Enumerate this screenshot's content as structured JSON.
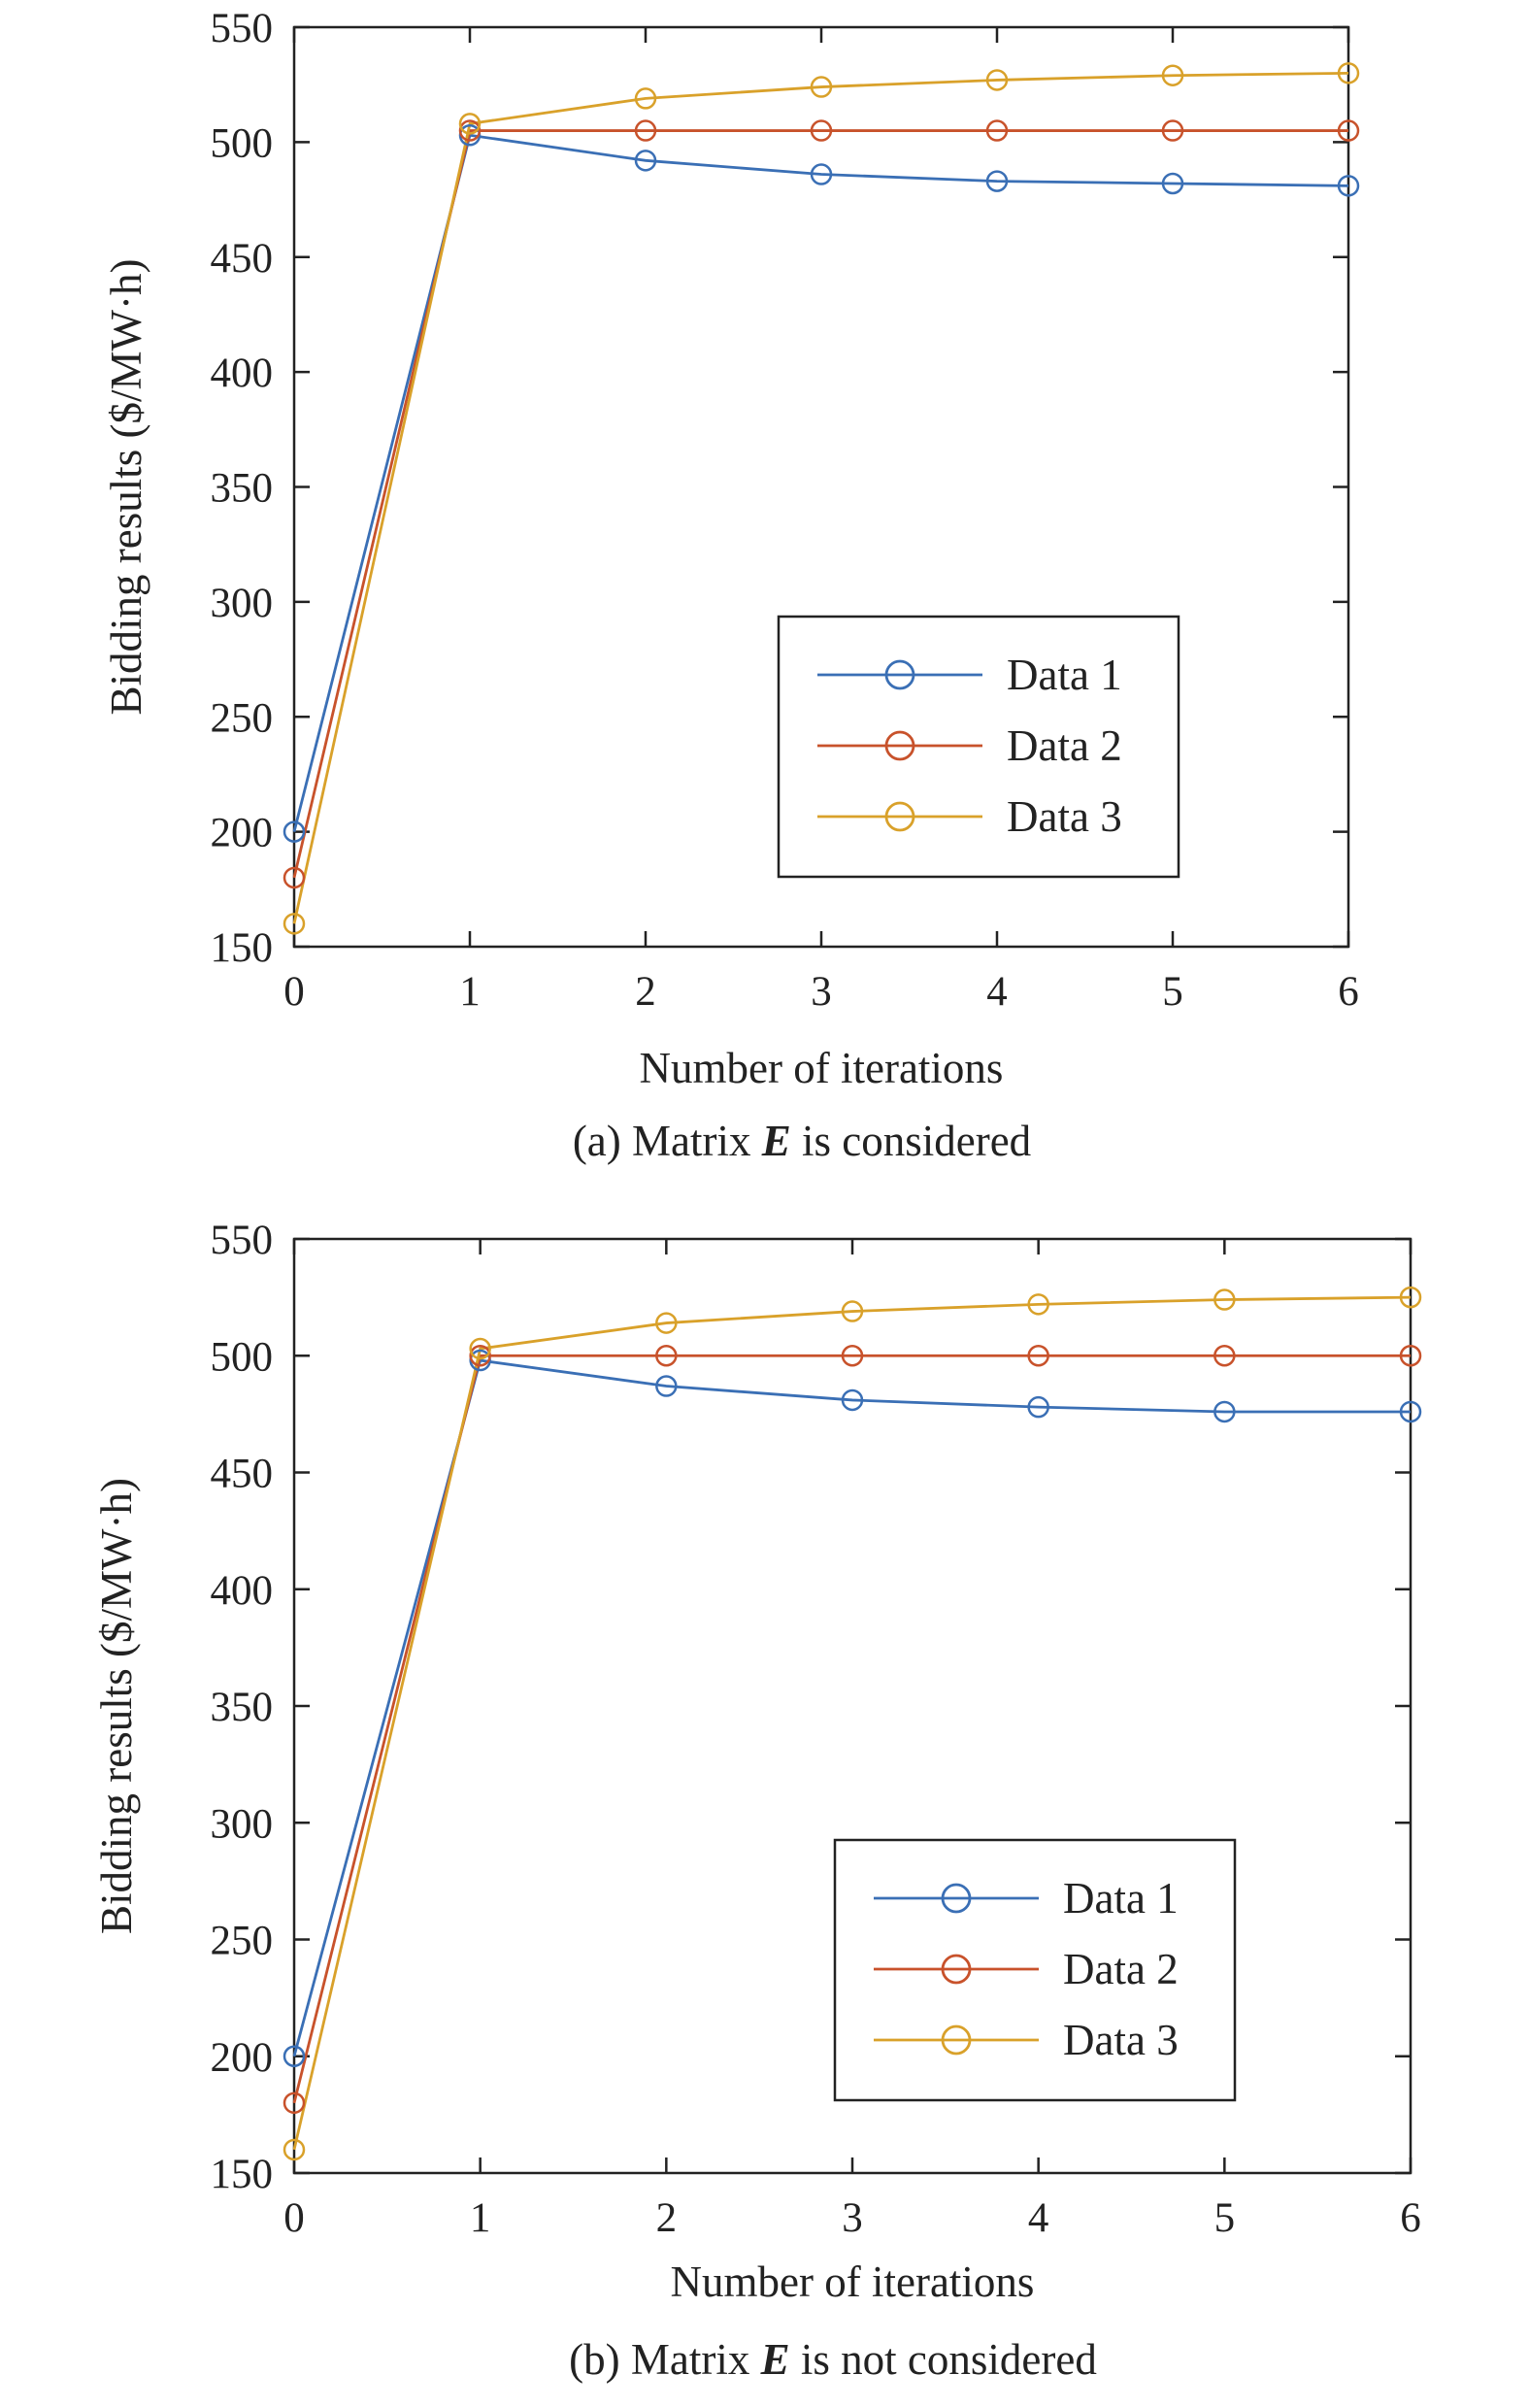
{
  "chart_data": [
    {
      "type": "line",
      "caption_prefix": "(a) Matrix ",
      "caption_var": "E",
      "caption_suffix": " is considered",
      "xlabel": "Number of iterations",
      "ylabel": "Bidding results ($/MW·h)",
      "x": [
        0,
        1,
        2,
        3,
        4,
        5,
        6
      ],
      "xlim": [
        0,
        6
      ],
      "ylim": [
        150,
        550
      ],
      "xticks": [
        0,
        1,
        2,
        3,
        4,
        5,
        6
      ],
      "yticks": [
        150,
        200,
        250,
        300,
        350,
        400,
        450,
        500,
        550
      ],
      "grid": false,
      "legend_position": "lower-right",
      "series": [
        {
          "name": "Data 1",
          "color": "#3a6fb5",
          "values": [
            200,
            503,
            492,
            486,
            483,
            482,
            481
          ]
        },
        {
          "name": "Data 2",
          "color": "#c8522b",
          "values": [
            180,
            505,
            505,
            505,
            505,
            505,
            505
          ]
        },
        {
          "name": "Data 3",
          "color": "#d9a12a",
          "values": [
            160,
            508,
            519,
            524,
            527,
            529,
            530
          ]
        }
      ]
    },
    {
      "type": "line",
      "caption_prefix": "(b) Matrix ",
      "caption_var": "E",
      "caption_suffix": " is not considered",
      "xlabel": "Number of iterations",
      "ylabel": "Bidding results ($/MW·h)",
      "x": [
        0,
        1,
        2,
        3,
        4,
        5,
        6
      ],
      "xlim": [
        0,
        6
      ],
      "ylim": [
        150,
        550
      ],
      "xticks": [
        0,
        1,
        2,
        3,
        4,
        5,
        6
      ],
      "yticks": [
        150,
        200,
        250,
        300,
        350,
        400,
        450,
        500,
        550
      ],
      "grid": false,
      "legend_position": "lower-right",
      "series": [
        {
          "name": "Data 1",
          "color": "#3a6fb5",
          "values": [
            200,
            498,
            487,
            481,
            478,
            476,
            476
          ]
        },
        {
          "name": "Data 2",
          "color": "#c8522b",
          "values": [
            180,
            500,
            500,
            500,
            500,
            500,
            500
          ]
        },
        {
          "name": "Data 3",
          "color": "#d9a12a",
          "values": [
            160,
            503,
            514,
            519,
            522,
            524,
            525
          ]
        }
      ]
    }
  ]
}
